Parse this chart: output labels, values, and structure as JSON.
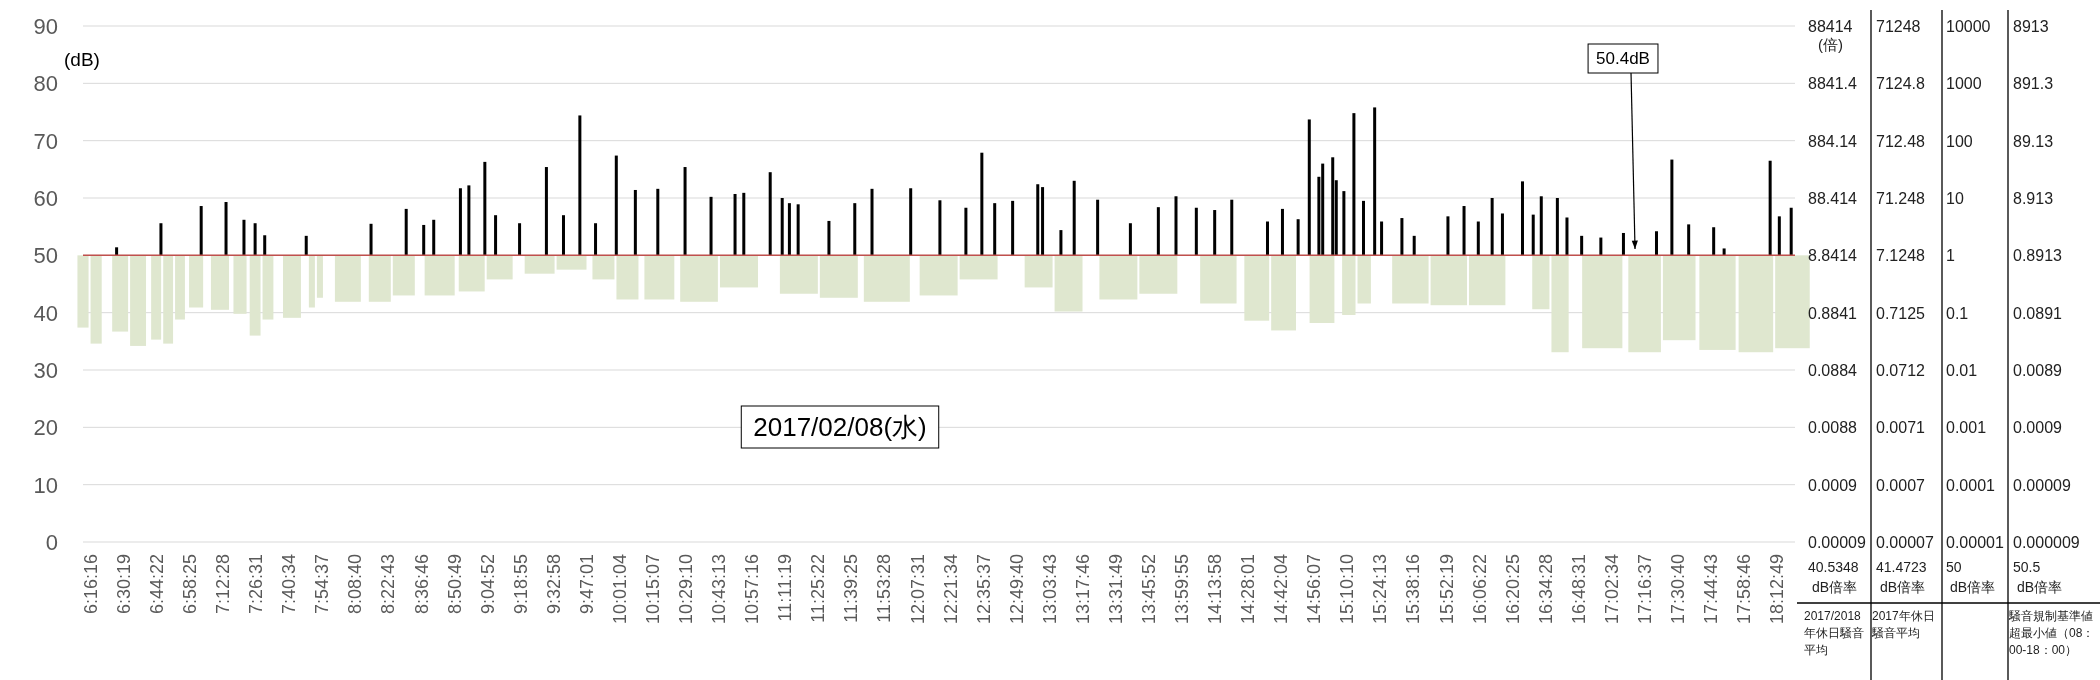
{
  "chart_data": [
    {
      "type": "bar",
      "ylabel": "(dB)",
      "annotations": [
        "2017/02/08(水)",
        {
          "text": "50.4dB",
          "x": 17.207,
          "y": 50.4
        }
      ],
      "xlim": [
        6.215,
        18.34
      ],
      "xticks": [
        {
          "value": 6.2711,
          "label": "6:16:16"
        },
        {
          "value": 6.5053,
          "label": "6:30:19"
        },
        {
          "value": 6.7394,
          "label": "6:44:22"
        },
        {
          "value": 6.9736,
          "label": "6:58:25"
        },
        {
          "value": 7.2078,
          "label": "7:12:28"
        },
        {
          "value": 7.4419,
          "label": "7:26:31"
        },
        {
          "value": 7.6761,
          "label": "7:40:34"
        },
        {
          "value": 7.9103,
          "label": "7:54:37"
        },
        {
          "value": 8.1444,
          "label": "8:08:40"
        },
        {
          "value": 8.3786,
          "label": "8:22:43"
        },
        {
          "value": 8.6128,
          "label": "8:36:46"
        },
        {
          "value": 8.8469,
          "label": "8:50:49"
        },
        {
          "value": 9.0811,
          "label": "9:04:52"
        },
        {
          "value": 9.3153,
          "label": "9:18:55"
        },
        {
          "value": 9.5494,
          "label": "9:32:58"
        },
        {
          "value": 9.7836,
          "label": "9:47:01"
        },
        {
          "value": 10.0178,
          "label": "10:01:04"
        },
        {
          "value": 10.2519,
          "label": "10:15:07"
        },
        {
          "value": 10.4861,
          "label": "10:29:10"
        },
        {
          "value": 10.7203,
          "label": "10:43:13"
        },
        {
          "value": 10.9544,
          "label": "10:57:16"
        },
        {
          "value": 11.1886,
          "label": "11:11:19"
        },
        {
          "value": 11.4228,
          "label": "11:25:22"
        },
        {
          "value": 11.6569,
          "label": "11:39:25"
        },
        {
          "value": 11.8911,
          "label": "11:53:28"
        },
        {
          "value": 12.1253,
          "label": "12:07:31"
        },
        {
          "value": 12.3594,
          "label": "12:21:34"
        },
        {
          "value": 12.5936,
          "label": "12:35:37"
        },
        {
          "value": 12.8278,
          "label": "12:49:40"
        },
        {
          "value": 13.0619,
          "label": "13:03:43"
        },
        {
          "value": 13.2961,
          "label": "13:17:46"
        },
        {
          "value": 13.5303,
          "label": "13:31:49"
        },
        {
          "value": 13.7644,
          "label": "13:45:52"
        },
        {
          "value": 13.9986,
          "label": "13:59:55"
        },
        {
          "value": 14.2328,
          "label": "14:13:58"
        },
        {
          "value": 14.4669,
          "label": "14:28:01"
        },
        {
          "value": 14.7011,
          "label": "14:42:04"
        },
        {
          "value": 14.9353,
          "label": "14:56:07"
        },
        {
          "value": 15.1694,
          "label": "15:10:10"
        },
        {
          "value": 15.4036,
          "label": "15:24:13"
        },
        {
          "value": 15.6378,
          "label": "15:38:16"
        },
        {
          "value": 15.8719,
          "label": "15:52:19"
        },
        {
          "value": 16.1061,
          "label": "16:06:22"
        },
        {
          "value": 16.3403,
          "label": "16:20:25"
        },
        {
          "value": 16.5744,
          "label": "16:34:28"
        },
        {
          "value": 16.8086,
          "label": "16:48:31"
        },
        {
          "value": 17.0428,
          "label": "17:02:34"
        },
        {
          "value": 17.2769,
          "label": "17:16:37"
        },
        {
          "value": 17.5111,
          "label": "17:30:40"
        },
        {
          "value": 17.7453,
          "label": "17:44:43"
        },
        {
          "value": 17.9794,
          "label": "17:58:46"
        },
        {
          "value": 18.2136,
          "label": "18:12:49"
        }
      ],
      "ylim": [
        0,
        90
      ],
      "yticks": [
        0,
        10,
        20,
        30,
        40,
        50,
        60,
        70,
        80,
        90
      ],
      "grid": "y",
      "ref_lines": [
        {
          "axis": "y",
          "value": 50,
          "label": null,
          "color": "#c0504d"
        }
      ],
      "series": [
        {
          "type": "bar",
          "color": "#dfe7cf",
          "x": [
            6.215,
            6.308,
            6.478,
            6.605,
            6.733,
            6.818,
            6.902,
            7.016,
            7.185,
            7.327,
            7.434,
            7.525,
            7.695,
            7.836,
            7.893,
            8.091,
            8.317,
            8.487,
            8.741,
            8.968,
            9.166,
            9.449,
            9.675,
            9.901,
            10.071,
            10.297,
            10.578,
            10.861,
            11.285,
            11.568,
            11.908,
            12.275,
            12.558,
            12.983,
            13.195,
            13.548,
            13.831,
            14.256,
            14.528,
            14.718,
            14.99,
            15.18,
            15.289,
            15.616,
            15.888,
            16.16,
            16.54,
            16.676,
            16.975,
            17.275,
            17.52,
            17.791,
            18.063,
            18.322
          ],
          "base": [
            37.4,
            34.6,
            36.7,
            34.2,
            35.3,
            34.6,
            38.8,
            40.9,
            40.5,
            39.8,
            36.0,
            38.8,
            39.1,
            40.9,
            42.6,
            41.9,
            41.9,
            43.0,
            43.0,
            43.7,
            45.8,
            46.8,
            47.5,
            45.8,
            42.3,
            42.3,
            41.9,
            44.4,
            43.3,
            42.6,
            41.9,
            43.0,
            45.8,
            44.4,
            40.2,
            42.3,
            43.3,
            41.6,
            38.6,
            36.9,
            38.2,
            39.6,
            41.6,
            41.6,
            41.3,
            41.3,
            40.6,
            33.1,
            33.8,
            33.1,
            35.2,
            33.5,
            33.1,
            33.8
          ],
          "values": [
            12.6,
            15.4,
            13.3,
            15.8,
            14.7,
            15.4,
            11.2,
            9.1,
            9.5,
            10.2,
            14.0,
            11.2,
            10.9,
            9.1,
            7.4,
            8.1,
            8.1,
            7.0,
            7.0,
            6.3,
            4.2,
            3.2,
            2.5,
            4.2,
            7.7,
            7.7,
            8.1,
            5.6,
            6.7,
            7.4,
            8.1,
            7.0,
            4.2,
            5.6,
            9.8,
            7.7,
            6.7,
            8.4,
            11.4,
            13.1,
            11.8,
            10.4,
            8.4,
            8.4,
            8.7,
            8.7,
            9.4,
            16.9,
            16.2,
            16.9,
            14.8,
            16.5,
            16.9,
            16.2
          ]
        },
        {
          "type": "bar",
          "color": "#000000",
          "x": [
            6.453,
            6.767,
            7.052,
            7.228,
            7.355,
            7.434,
            7.502,
            7.796,
            8.255,
            8.504,
            8.628,
            8.699,
            8.888,
            8.948,
            9.061,
            9.137,
            9.307,
            9.497,
            9.618,
            9.734,
            9.845,
            9.992,
            10.127,
            10.286,
            10.479,
            10.663,
            10.833,
            10.895,
            11.082,
            11.167,
            11.218,
            11.28,
            11.498,
            11.681,
            11.803,
            12.077,
            12.284,
            12.468,
            12.581,
            12.672,
            12.799,
            12.977,
            13.011,
            13.141,
            13.235,
            13.401,
            13.633,
            13.831,
            13.956,
            14.1,
            14.23,
            14.351,
            14.604,
            14.71,
            14.821,
            14.9,
            14.968,
            14.995,
            15.066,
            15.091,
            15.145,
            15.216,
            15.284,
            15.363,
            15.412,
            15.556,
            15.643,
            15.882,
            15.996,
            16.097,
            16.195,
            16.268,
            16.41,
            16.486,
            16.543,
            16.657,
            16.725,
            16.829,
            16.965,
            17.125,
            17.359,
            17.468,
            17.587,
            17.764,
            17.838,
            18.164,
            18.229,
            18.313
          ],
          "base": [
            50,
            50,
            50,
            50,
            50,
            50,
            50,
            50,
            50,
            50,
            50,
            50,
            50,
            50,
            50,
            50,
            50,
            50,
            50,
            50,
            50,
            50,
            50,
            50,
            50,
            50,
            50,
            50,
            50,
            50,
            50,
            50,
            50,
            50,
            50,
            50,
            50,
            50,
            50,
            50,
            50,
            50,
            50,
            50,
            50,
            50,
            50,
            50,
            50,
            50,
            50,
            50,
            50,
            50,
            50,
            50,
            50,
            50,
            50,
            50,
            50,
            50,
            50,
            50,
            50,
            50,
            50,
            50,
            50,
            50,
            50,
            50,
            50,
            50,
            50,
            50,
            50,
            50,
            50,
            50,
            50,
            50,
            50,
            50,
            50,
            50,
            50,
            50
          ],
          "values": [
            1.4,
            5.6,
            8.6,
            9.3,
            6.2,
            5.6,
            3.5,
            3.4,
            5.5,
            8.1,
            5.3,
            6.2,
            11.7,
            12.2,
            16.3,
            7,
            5.6,
            15.4,
            7,
            24.4,
            5.6,
            17.4,
            11.4,
            11.6,
            15.4,
            10.2,
            10.7,
            10.9,
            14.5,
            10,
            9.1,
            8.9,
            6,
            9.1,
            11.6,
            11.7,
            9.6,
            8.3,
            17.9,
            9.1,
            9.5,
            12.4,
            11.9,
            4.4,
            13,
            9.7,
            5.6,
            8.4,
            10.3,
            8.3,
            7.9,
            9.7,
            5.9,
            8.1,
            6.3,
            23.7,
            13.7,
            16,
            17.1,
            13.1,
            11.2,
            24.8,
            9.5,
            25.8,
            5.9,
            6.5,
            3.4,
            6.8,
            8.6,
            5.9,
            10,
            7.3,
            12.9,
            7.1,
            10.3,
            10,
            6.6,
            3.4,
            3.1,
            3.9,
            4.2,
            16.7,
            5.4,
            4.9,
            1.2,
            16.5,
            6.8,
            8.3
          ]
        }
      ]
    },
    {
      "type": "other",
      "annotations": [
        "88414",
        "(倍)",
        "8841.4",
        "884.14",
        "88.414",
        "8.8414",
        "0.8841",
        "0.0884",
        "0.0088",
        "0.0009",
        "0.00009",
        "40.5348 dB倍率",
        "2017/2018年休日騒音平均",
        "71248",
        "7124.8",
        "712.48",
        "71.248",
        "7.1248",
        "0.7125",
        "0.0712",
        "0.0071",
        "0.0007",
        "0.00007",
        "41.4723 dB倍率",
        "2017年休日騒音平均",
        "10000",
        "1000",
        "100",
        "10",
        "1",
        "0.1",
        "0.01",
        "0.001",
        "0.0001",
        "0.00001",
        "50 dB倍率",
        "8913",
        "891.3",
        "89.13",
        "8.913",
        "0.8913",
        "0.0891",
        "0.0089",
        "0.0009",
        "0.00009",
        "0.000009",
        "50.5 dB倍率",
        "騒音規制基準値超最小値（08：00-18：00）"
      ]
    }
  ]
}
